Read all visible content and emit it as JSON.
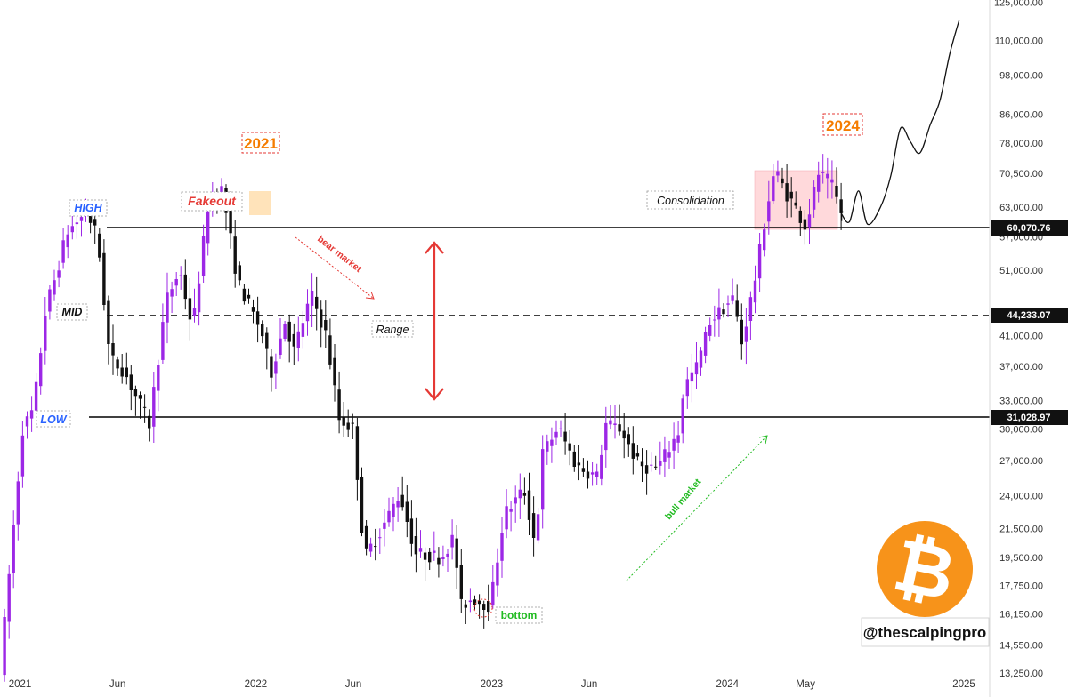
{
  "chart_data": {
    "type": "candlestick",
    "y_scale": "log",
    "ylim": [
      12900,
      126000
    ],
    "xlim": [
      "2020-12-01",
      "2025-02-10"
    ],
    "y_ticks": [
      {
        "value": 125000,
        "label": "125,000.00"
      },
      {
        "value": 110000,
        "label": "110,000.00"
      },
      {
        "value": 98000,
        "label": "98,000.00"
      },
      {
        "value": 86000,
        "label": "86,000.00"
      },
      {
        "value": 78000,
        "label": "78,000.00"
      },
      {
        "value": 70500,
        "label": "70,500.00"
      },
      {
        "value": 63000,
        "label": "63,000.00"
      },
      {
        "value": 57000,
        "label": "57,000.00"
      },
      {
        "value": 51000,
        "label": "51,000.00"
      },
      {
        "value": 41000,
        "label": "41,000.00"
      },
      {
        "value": 37000,
        "label": "37,000.00"
      },
      {
        "value": 33000,
        "label": "33,000.00"
      },
      {
        "value": 30000,
        "label": "30,000.00"
      },
      {
        "value": 27000,
        "label": "27,000.00"
      },
      {
        "value": 24000,
        "label": "24,000.00"
      },
      {
        "value": 21500,
        "label": "21,500.00"
      },
      {
        "value": 19500,
        "label": "19,500.00"
      },
      {
        "value": 17750,
        "label": "17,750.00"
      },
      {
        "value": 16150,
        "label": "16,150.00"
      },
      {
        "value": 14550,
        "label": "14,550.00"
      },
      {
        "value": 13250,
        "label": "13,250.00"
      }
    ],
    "x_ticks": [
      {
        "date": "2021-01-01",
        "label": "2021"
      },
      {
        "date": "2021-06-01",
        "label": "Jun"
      },
      {
        "date": "2022-01-01",
        "label": "2022"
      },
      {
        "date": "2022-06-01",
        "label": "Jun"
      },
      {
        "date": "2023-01-01",
        "label": "2023"
      },
      {
        "date": "2023-06-01",
        "label": "Jun"
      },
      {
        "date": "2024-01-01",
        "label": "2024"
      },
      {
        "date": "2024-05-01",
        "label": "May"
      },
      {
        "date": "2025-01-01",
        "label": "2025"
      }
    ],
    "levels": [
      {
        "name": "HIGH",
        "value": 60070.76,
        "label": "60,070.76",
        "style": "solid"
      },
      {
        "name": "MID",
        "value": 44233.07,
        "label": "44,233.07",
        "style": "dashed"
      },
      {
        "name": "LOW",
        "value": 31028.97,
        "label": "31,028.97",
        "style": "solid"
      }
    ],
    "anchors": [
      {
        "date": "2020-12-01",
        "price": 13300
      },
      {
        "date": "2021-01-05",
        "price": 30000
      },
      {
        "date": "2021-01-22",
        "price": 32000
      },
      {
        "date": "2021-02-10",
        "price": 45000
      },
      {
        "date": "2021-02-25",
        "price": 50000
      },
      {
        "date": "2021-03-15",
        "price": 58000
      },
      {
        "date": "2021-04-14",
        "price": 62000
      },
      {
        "date": "2021-05-01",
        "price": 57000
      },
      {
        "date": "2021-05-20",
        "price": 38000
      },
      {
        "date": "2021-06-10",
        "price": 36500
      },
      {
        "date": "2021-07-20",
        "price": 30500
      },
      {
        "date": "2021-08-15",
        "price": 46000
      },
      {
        "date": "2021-09-05",
        "price": 51000
      },
      {
        "date": "2021-09-25",
        "price": 42000
      },
      {
        "date": "2021-10-20",
        "price": 64000
      },
      {
        "date": "2021-11-10",
        "price": 67000
      },
      {
        "date": "2021-12-04",
        "price": 49000
      },
      {
        "date": "2022-01-10",
        "price": 41500
      },
      {
        "date": "2022-01-24",
        "price": 36000
      },
      {
        "date": "2022-02-15",
        "price": 43000
      },
      {
        "date": "2022-03-01",
        "price": 39000
      },
      {
        "date": "2022-03-28",
        "price": 47000
      },
      {
        "date": "2022-04-20",
        "price": 41000
      },
      {
        "date": "2022-05-10",
        "price": 31000
      },
      {
        "date": "2022-06-01",
        "price": 30000
      },
      {
        "date": "2022-06-18",
        "price": 19500
      },
      {
        "date": "2022-07-15",
        "price": 21500
      },
      {
        "date": "2022-08-12",
        "price": 24200
      },
      {
        "date": "2022-09-05",
        "price": 19800
      },
      {
        "date": "2022-10-15",
        "price": 19500
      },
      {
        "date": "2022-11-05",
        "price": 21000
      },
      {
        "date": "2022-11-12",
        "price": 16500
      },
      {
        "date": "2022-12-01",
        "price": 17000
      },
      {
        "date": "2022-12-30",
        "price": 16600
      },
      {
        "date": "2023-01-20",
        "price": 22500
      },
      {
        "date": "2023-02-20",
        "price": 24500
      },
      {
        "date": "2023-03-10",
        "price": 20200
      },
      {
        "date": "2023-03-20",
        "price": 27500
      },
      {
        "date": "2023-04-14",
        "price": 30200
      },
      {
        "date": "2023-05-12",
        "price": 26500
      },
      {
        "date": "2023-06-15",
        "price": 25500
      },
      {
        "date": "2023-06-25",
        "price": 30500
      },
      {
        "date": "2023-07-20",
        "price": 30000
      },
      {
        "date": "2023-08-17",
        "price": 26500
      },
      {
        "date": "2023-09-15",
        "price": 26300
      },
      {
        "date": "2023-10-20",
        "price": 30000
      },
      {
        "date": "2023-10-25",
        "price": 34500
      },
      {
        "date": "2023-11-15",
        "price": 37000
      },
      {
        "date": "2023-12-05",
        "price": 43000
      },
      {
        "date": "2024-01-10",
        "price": 46500
      },
      {
        "date": "2024-01-23",
        "price": 40000
      },
      {
        "date": "2024-02-12",
        "price": 49000
      },
      {
        "date": "2024-03-01",
        "price": 62000
      },
      {
        "date": "2024-03-14",
        "price": 71500
      },
      {
        "date": "2024-04-01",
        "price": 66000
      },
      {
        "date": "2024-04-15",
        "price": 63000
      },
      {
        "date": "2024-05-01",
        "price": 59000
      },
      {
        "date": "2024-05-21",
        "price": 70500
      },
      {
        "date": "2024-06-10",
        "price": 68000
      },
      {
        "date": "2024-06-26",
        "price": 61500
      }
    ],
    "projection": [
      {
        "date": "2024-06-26",
        "price": 61500
      },
      {
        "date": "2024-07-08",
        "price": 60000
      },
      {
        "date": "2024-07-22",
        "price": 66500
      },
      {
        "date": "2024-08-05",
        "price": 59500
      },
      {
        "date": "2024-08-25",
        "price": 63000
      },
      {
        "date": "2024-09-10",
        "price": 70000
      },
      {
        "date": "2024-09-25",
        "price": 82000
      },
      {
        "date": "2024-10-10",
        "price": 78500
      },
      {
        "date": "2024-10-25",
        "price": 75500
      },
      {
        "date": "2024-11-10",
        "price": 83000
      },
      {
        "date": "2024-11-25",
        "price": 90000
      },
      {
        "date": "2024-12-10",
        "price": 105000
      },
      {
        "date": "2024-12-25",
        "price": 118000
      }
    ],
    "annotations": {
      "high": "HIGH",
      "mid": "MID",
      "low": "LOW",
      "fakeout": "Fakeout",
      "year_2021": "2021",
      "year_2024": "2024",
      "consolidation": "Consolidation",
      "range": "Range",
      "bear_market": "bear market",
      "bull_market": "bull market",
      "bottom": "bottom"
    },
    "colors": {
      "candle_up": "#9c27e6",
      "candle_down": "#111111",
      "level_line": "#000000",
      "annotation_red": "#e53935",
      "annotation_blue": "#2962ff",
      "annotation_green": "#22bb22",
      "year_label": "#f57c00",
      "fakeout_box": "#ffe0b2",
      "consolidation_box": "#ffd5d8",
      "bitcoin_orange": "#f7931a"
    }
  },
  "logo": {
    "icon": "bitcoin-icon",
    "glyph": "₿",
    "handle": "@thescalpingpro"
  }
}
